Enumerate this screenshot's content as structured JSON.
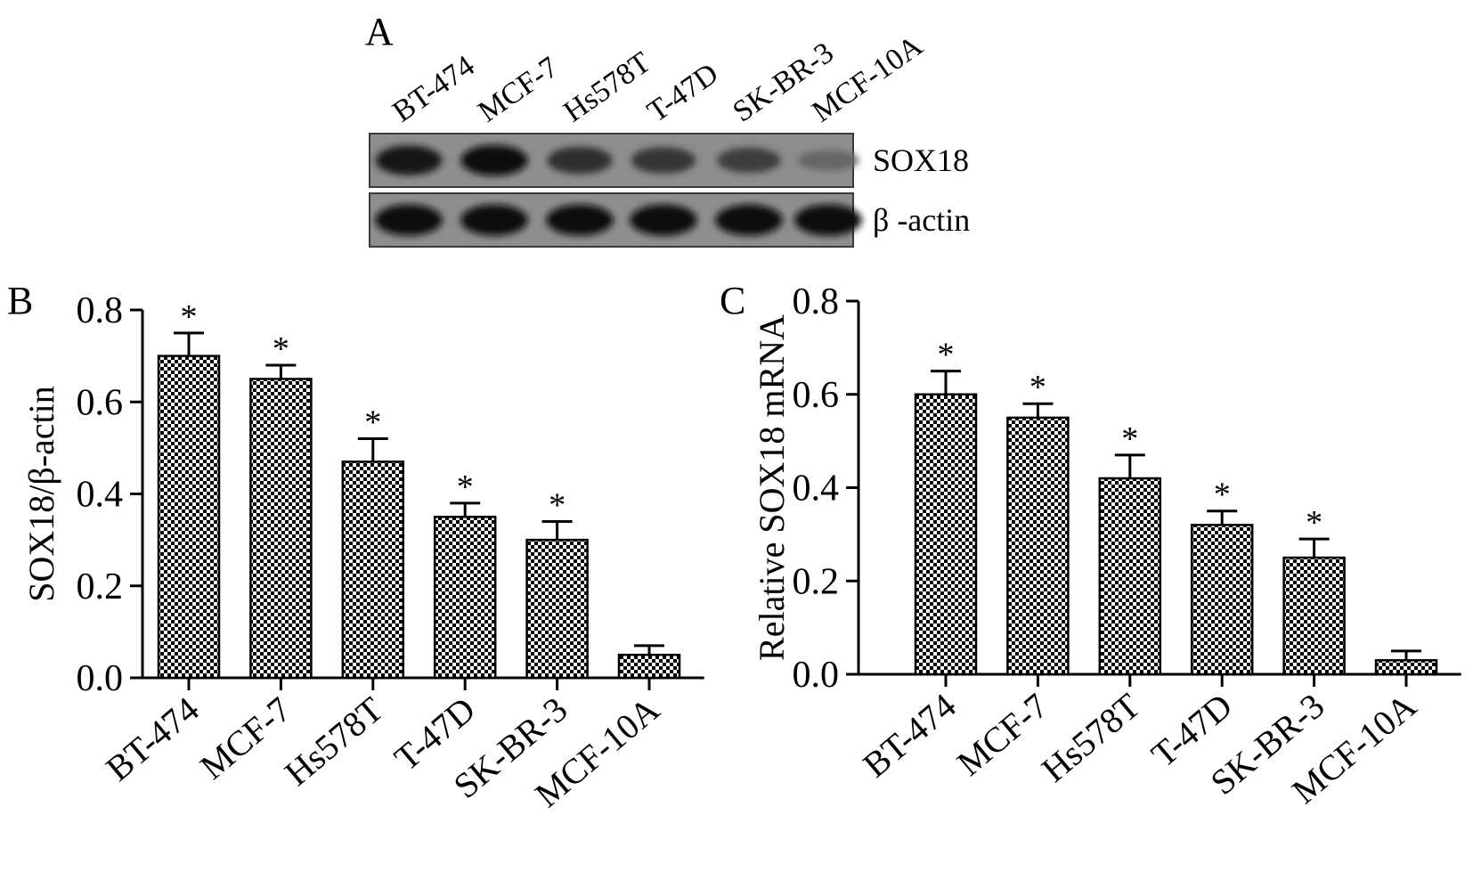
{
  "panels": {
    "a": {
      "letter": "A",
      "lanes": [
        "BT-474",
        "MCF-7",
        "Hs578T",
        "T-47D",
        "SK-BR-3",
        "MCF-10A"
      ],
      "rows": [
        {
          "label": "SOX18",
          "intensities": [
            0.85,
            0.92,
            0.7,
            0.65,
            0.58,
            0.28
          ]
        },
        {
          "label": "β -actin",
          "intensities": [
            0.95,
            0.95,
            0.94,
            0.95,
            0.94,
            0.95
          ]
        }
      ]
    },
    "b": {
      "letter": "B"
    },
    "c": {
      "letter": "C"
    }
  },
  "chart_data": [
    {
      "type": "bar",
      "panel": "B",
      "categories": [
        "BT-474",
        "MCF-7",
        "Hs578T",
        "T-47D",
        "SK-BR-3",
        "MCF-10A"
      ],
      "values": [
        0.7,
        0.65,
        0.47,
        0.35,
        0.3,
        0.05
      ],
      "errors": [
        0.05,
        0.03,
        0.05,
        0.03,
        0.04,
        0.02
      ],
      "significance": [
        "*",
        "*",
        "*",
        "*",
        "*",
        ""
      ],
      "xlabel": "",
      "ylabel": "SOX18/β-actin",
      "ylim": [
        0.0,
        0.8
      ],
      "yticks": [
        "0.0",
        "0.2",
        "0.4",
        "0.6",
        "0.8"
      ],
      "grid": false
    },
    {
      "type": "bar",
      "panel": "C",
      "categories": [
        "BT-474",
        "MCF-7",
        "Hs578T",
        "T-47D",
        "SK-BR-3",
        "MCF-10A"
      ],
      "values": [
        0.6,
        0.55,
        0.42,
        0.32,
        0.25,
        0.03
      ],
      "errors": [
        0.05,
        0.03,
        0.05,
        0.03,
        0.04,
        0.02
      ],
      "significance": [
        "*",
        "*",
        "*",
        "*",
        "*",
        ""
      ],
      "xlabel": "",
      "ylabel": "Relative SOX18 mRNA",
      "ylim": [
        0.0,
        0.8
      ],
      "yticks": [
        "0.0",
        "0.2",
        "0.4",
        "0.6",
        "0.8"
      ],
      "grid": false
    }
  ]
}
